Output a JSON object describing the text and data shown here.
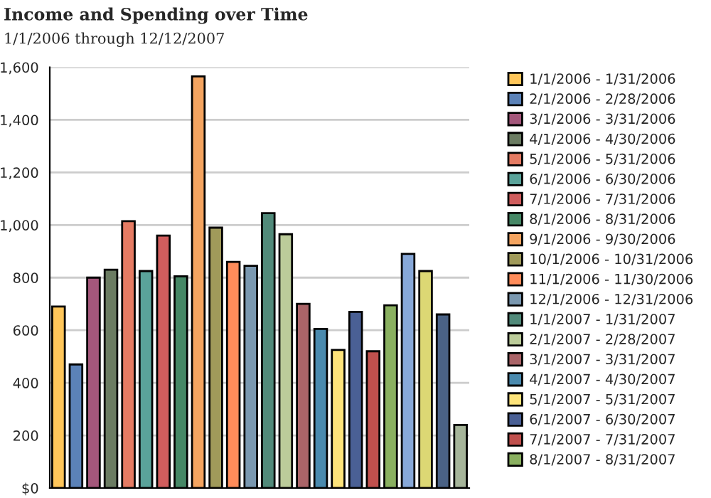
{
  "chart_data": {
    "type": "bar",
    "title": "Income and Spending over Time",
    "subtitle": "1/1/2006 through 12/12/2007",
    "categories": [
      null,
      null,
      null,
      null,
      null,
      null,
      null,
      null,
      null,
      null,
      null,
      null,
      null,
      null,
      null,
      null,
      null,
      null,
      null,
      null,
      null,
      null,
      null,
      null
    ],
    "series": [
      {
        "name": "1/1/2006 - 1/31/2006",
        "color": "#ffc65a",
        "values": [
          690,
          null,
          null,
          null,
          null,
          null,
          null,
          null,
          null,
          null,
          null,
          null,
          null,
          null,
          null,
          null,
          null,
          null,
          null,
          null,
          null,
          null,
          null,
          null
        ]
      },
      {
        "name": "2/1/2006 - 2/28/2006",
        "color": "#5b82b8",
        "values": [
          null,
          470,
          null,
          null,
          null,
          null,
          null,
          null,
          null,
          null,
          null,
          null,
          null,
          null,
          null,
          null,
          null,
          null,
          null,
          null,
          null,
          null,
          null,
          null
        ]
      },
      {
        "name": "3/1/2006 - 3/31/2006",
        "color": "#a4577b",
        "values": [
          null,
          null,
          800,
          null,
          null,
          null,
          null,
          null,
          null,
          null,
          null,
          null,
          null,
          null,
          null,
          null,
          null,
          null,
          null,
          null,
          null,
          null,
          null,
          null
        ]
      },
      {
        "name": "4/1/2006 - 4/30/2006",
        "color": "#6b7c62",
        "values": [
          null,
          null,
          null,
          830,
          null,
          null,
          null,
          null,
          null,
          null,
          null,
          null,
          null,
          null,
          null,
          null,
          null,
          null,
          null,
          null,
          null,
          null,
          null,
          null
        ]
      },
      {
        "name": "5/1/2006 - 5/31/2006",
        "color": "#e57b63",
        "values": [
          null,
          null,
          null,
          null,
          1015,
          null,
          null,
          null,
          null,
          null,
          null,
          null,
          null,
          null,
          null,
          null,
          null,
          null,
          null,
          null,
          null,
          null,
          null,
          null
        ]
      },
      {
        "name": "6/1/2006 - 6/30/2006",
        "color": "#5aa39a",
        "values": [
          null,
          null,
          null,
          null,
          null,
          825,
          null,
          null,
          null,
          null,
          null,
          null,
          null,
          null,
          null,
          null,
          null,
          null,
          null,
          null,
          null,
          null,
          null,
          null
        ]
      },
      {
        "name": "7/1/2006 - 7/31/2006",
        "color": "#d05d5d",
        "values": [
          null,
          null,
          null,
          null,
          null,
          null,
          960,
          null,
          null,
          null,
          null,
          null,
          null,
          null,
          null,
          null,
          null,
          null,
          null,
          null,
          null,
          null,
          null,
          null
        ]
      },
      {
        "name": "8/1/2006 - 8/31/2006",
        "color": "#468866",
        "values": [
          null,
          null,
          null,
          null,
          null,
          null,
          null,
          805,
          null,
          null,
          null,
          null,
          null,
          null,
          null,
          null,
          null,
          null,
          null,
          null,
          null,
          null,
          null,
          null
        ]
      },
      {
        "name": "9/1/2006 - 9/30/2006",
        "color": "#f4a460",
        "values": [
          null,
          null,
          null,
          null,
          null,
          null,
          null,
          null,
          1565,
          null,
          null,
          null,
          null,
          null,
          null,
          null,
          null,
          null,
          null,
          null,
          null,
          null,
          null,
          null
        ]
      },
      {
        "name": "10/1/2006 - 10/31/2006",
        "color": "#a09a5a",
        "values": [
          null,
          null,
          null,
          null,
          null,
          null,
          null,
          null,
          null,
          990,
          null,
          null,
          null,
          null,
          null,
          null,
          null,
          null,
          null,
          null,
          null,
          null,
          null,
          null
        ]
      },
      {
        "name": "11/1/2006 - 11/30/2006",
        "color": "#ff8c5a",
        "values": [
          null,
          null,
          null,
          null,
          null,
          null,
          null,
          null,
          null,
          null,
          860,
          null,
          null,
          null,
          null,
          null,
          null,
          null,
          null,
          null,
          null,
          null,
          null,
          null
        ]
      },
      {
        "name": "12/1/2006 - 12/31/2006",
        "color": "#7a98b0",
        "values": [
          null,
          null,
          null,
          null,
          null,
          null,
          null,
          null,
          null,
          null,
          null,
          845,
          null,
          null,
          null,
          null,
          null,
          null,
          null,
          null,
          null,
          null,
          null,
          null
        ]
      },
      {
        "name": "1/1/2007 - 1/31/2007",
        "color": "#518a7a",
        "values": [
          null,
          null,
          null,
          null,
          null,
          null,
          null,
          null,
          null,
          null,
          null,
          null,
          1045,
          null,
          null,
          null,
          null,
          null,
          null,
          null,
          null,
          null,
          null,
          null
        ]
      },
      {
        "name": "2/1/2007 - 2/28/2007",
        "color": "#bccc9a",
        "values": [
          null,
          null,
          null,
          null,
          null,
          null,
          null,
          null,
          null,
          null,
          null,
          null,
          null,
          965,
          null,
          null,
          null,
          null,
          null,
          null,
          null,
          null,
          null,
          null
        ]
      },
      {
        "name": "3/1/2007 - 3/31/2007",
        "color": "#aa6468",
        "values": [
          null,
          null,
          null,
          null,
          null,
          null,
          null,
          null,
          null,
          null,
          null,
          null,
          null,
          null,
          700,
          null,
          null,
          null,
          null,
          null,
          null,
          null,
          null,
          null
        ]
      },
      {
        "name": "4/1/2007 - 4/30/2007",
        "color": "#4a8aae",
        "values": [
          null,
          null,
          null,
          null,
          null,
          null,
          null,
          null,
          null,
          null,
          null,
          null,
          null,
          null,
          null,
          605,
          null,
          null,
          null,
          null,
          null,
          null,
          null,
          null
        ]
      },
      {
        "name": "5/1/2007 - 5/31/2007",
        "color": "#fde37a",
        "values": [
          null,
          null,
          null,
          null,
          null,
          null,
          null,
          null,
          null,
          null,
          null,
          null,
          null,
          null,
          null,
          null,
          525,
          null,
          null,
          null,
          null,
          null,
          null,
          null
        ]
      },
      {
        "name": "6/1/2007 - 6/30/2007",
        "color": "#4a6095",
        "values": [
          null,
          null,
          null,
          null,
          null,
          null,
          null,
          null,
          null,
          null,
          null,
          null,
          null,
          null,
          null,
          null,
          null,
          670,
          null,
          null,
          null,
          null,
          null,
          null
        ]
      },
      {
        "name": "7/1/2007 - 7/31/2007",
        "color": "#c0504d",
        "values": [
          null,
          null,
          null,
          null,
          null,
          null,
          null,
          null,
          null,
          null,
          null,
          null,
          null,
          null,
          null,
          null,
          null,
          null,
          520,
          null,
          null,
          null,
          null,
          null
        ]
      },
      {
        "name": "8/1/2007 - 8/31/2007",
        "color": "#8ab060",
        "values": [
          null,
          null,
          null,
          null,
          null,
          null,
          null,
          null,
          null,
          null,
          null,
          null,
          null,
          null,
          null,
          null,
          null,
          null,
          null,
          695,
          null,
          null,
          null,
          null
        ]
      },
      {
        "color": "#87a8d8",
        "values": [
          null,
          null,
          null,
          null,
          null,
          null,
          null,
          null,
          null,
          null,
          null,
          null,
          null,
          null,
          null,
          null,
          null,
          null,
          null,
          null,
          890,
          null,
          null,
          null
        ]
      },
      {
        "color": "#dcd874",
        "values": [
          null,
          null,
          null,
          null,
          null,
          null,
          null,
          null,
          null,
          null,
          null,
          null,
          null,
          null,
          null,
          null,
          null,
          null,
          null,
          null,
          null,
          825,
          null,
          null
        ]
      },
      {
        "color": "#4a6285",
        "values": [
          null,
          null,
          null,
          null,
          null,
          null,
          null,
          null,
          null,
          null,
          null,
          null,
          null,
          null,
          null,
          null,
          null,
          null,
          null,
          null,
          null,
          null,
          660,
          null
        ]
      },
      {
        "color": "#a6b59a",
        "values": [
          null,
          null,
          null,
          null,
          null,
          null,
          null,
          null,
          null,
          null,
          null,
          null,
          null,
          null,
          null,
          null,
          null,
          null,
          null,
          null,
          null,
          null,
          null,
          240
        ]
      }
    ],
    "ylim": [
      0,
      1600
    ],
    "yticks": [
      {
        "value": 0,
        "label": "$0"
      },
      200,
      400,
      600,
      800,
      {
        "value": 1000,
        "label": "1,000"
      },
      {
        "value": 1200,
        "label": "1,200"
      },
      {
        "value": 1400,
        "label": "1,400"
      },
      {
        "value": 1600,
        "label": "1,600"
      }
    ],
    "grid": "y",
    "legend": "right"
  }
}
